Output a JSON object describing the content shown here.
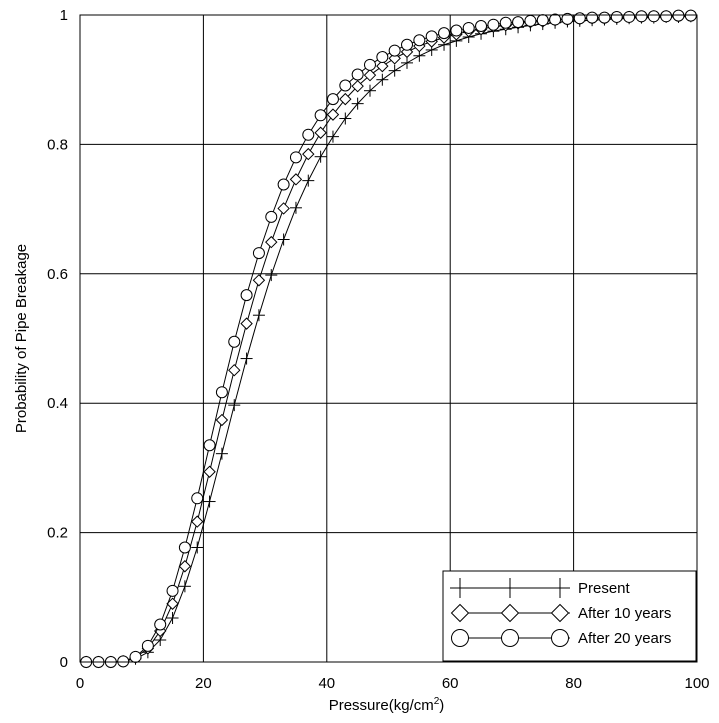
{
  "chart_data": {
    "type": "line",
    "xlabel": "Pressure(kg/cm",
    "xlabel_sup": "2",
    "xlabel_tail": ")",
    "ylabel": "Probability of Pipe Breakage",
    "xlim": [
      0,
      100
    ],
    "ylim": [
      0,
      1
    ],
    "x_ticks": [
      "0",
      "20",
      "40",
      "60",
      "80",
      "100"
    ],
    "y_ticks": [
      "0",
      "0.2",
      "0.4",
      "0.6",
      "0.8",
      "1"
    ],
    "grid": true,
    "legend_position": "bottom-right",
    "x": [
      1,
      3,
      5,
      7,
      9,
      11,
      13,
      15,
      17,
      19,
      21,
      23,
      25,
      27,
      29,
      31,
      33,
      35,
      37,
      39,
      41,
      43,
      45,
      47,
      49,
      51,
      53,
      55,
      57,
      59,
      61,
      63,
      65,
      67,
      69,
      71,
      73,
      75,
      77,
      79,
      81,
      83,
      85,
      87,
      89,
      91,
      93,
      95,
      97,
      99
    ],
    "series": [
      {
        "name": "Present",
        "marker": "plus",
        "values": [
          0.0,
          0.0,
          0.0,
          0.001,
          0.005,
          0.015,
          0.034,
          0.068,
          0.117,
          0.177,
          0.248,
          0.322,
          0.397,
          0.469,
          0.536,
          0.598,
          0.653,
          0.702,
          0.744,
          0.781,
          0.812,
          0.84,
          0.863,
          0.883,
          0.9,
          0.914,
          0.926,
          0.937,
          0.946,
          0.954,
          0.96,
          0.966,
          0.971,
          0.975,
          0.978,
          0.981,
          0.984,
          0.986,
          0.988,
          0.99,
          0.991,
          0.992,
          0.993,
          0.994,
          0.995,
          0.996,
          0.996,
          0.997,
          0.997,
          0.998
        ]
      },
      {
        "name": "After 10 years",
        "marker": "diamond",
        "values": [
          0.0,
          0.0,
          0.0,
          0.001,
          0.007,
          0.021,
          0.048,
          0.09,
          0.148,
          0.217,
          0.294,
          0.374,
          0.451,
          0.523,
          0.59,
          0.649,
          0.701,
          0.746,
          0.785,
          0.818,
          0.846,
          0.87,
          0.89,
          0.907,
          0.921,
          0.933,
          0.943,
          0.952,
          0.959,
          0.965,
          0.97,
          0.975,
          0.978,
          0.982,
          0.984,
          0.987,
          0.989,
          0.99,
          0.992,
          0.993,
          0.994,
          0.995,
          0.995,
          0.996,
          0.997,
          0.997,
          0.998,
          0.998,
          0.998,
          0.999
        ]
      },
      {
        "name": "After 20 years",
        "marker": "circle",
        "values": [
          0.0,
          0.0,
          0.0,
          0.001,
          0.008,
          0.025,
          0.058,
          0.11,
          0.177,
          0.253,
          0.335,
          0.417,
          0.495,
          0.567,
          0.632,
          0.688,
          0.738,
          0.78,
          0.815,
          0.845,
          0.87,
          0.891,
          0.908,
          0.923,
          0.935,
          0.945,
          0.954,
          0.961,
          0.967,
          0.972,
          0.976,
          0.98,
          0.983,
          0.985,
          0.988,
          0.989,
          0.991,
          0.992,
          0.993,
          0.994,
          0.995,
          0.996,
          0.996,
          0.997,
          0.997,
          0.998,
          0.998,
          0.998,
          0.999,
          0.999
        ]
      }
    ]
  }
}
